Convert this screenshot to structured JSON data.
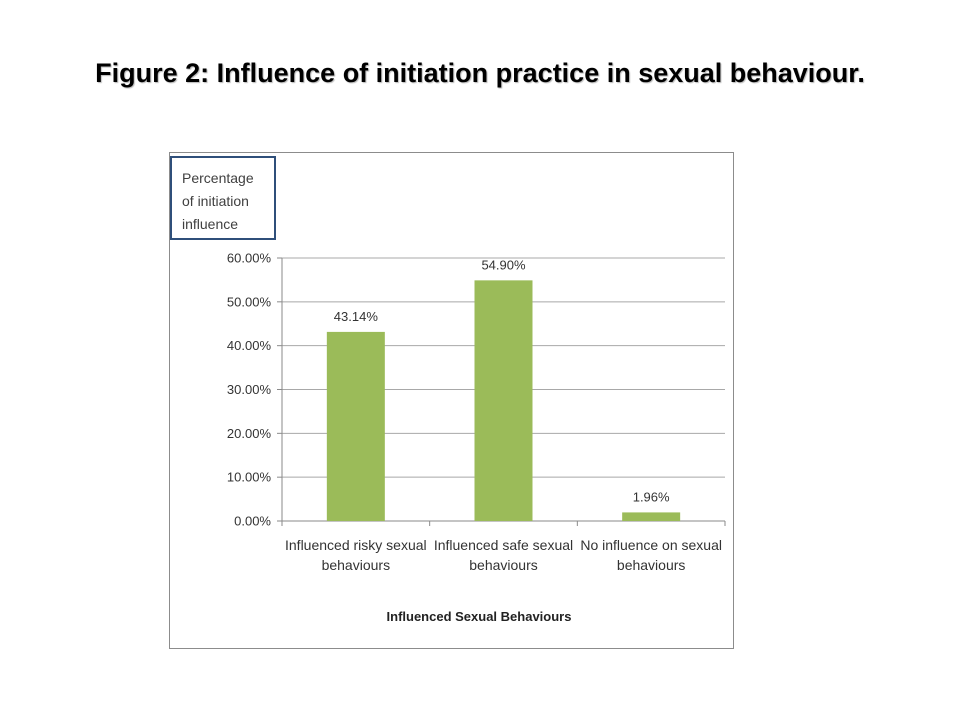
{
  "slide": {
    "title": "Figure 2: Influence of initiation practice in sexual behaviour."
  },
  "chart_data": {
    "type": "bar",
    "ylabel": "Percentage of initiation influence",
    "xlabel": "Influenced Sexual Behaviours",
    "categories": [
      [
        "Influenced risky sexual",
        "behaviours"
      ],
      [
        "Influenced safe sexual",
        "behaviours"
      ],
      [
        "No influence on sexual",
        "behaviours"
      ]
    ],
    "values": [
      43.14,
      54.9,
      1.96
    ],
    "data_labels": [
      "43.14%",
      "54.90%",
      "1.96%"
    ],
    "yticks": [
      0,
      10,
      20,
      30,
      40,
      50,
      60
    ],
    "ytick_labels": [
      "0.00%",
      "10.00%",
      "20.00%",
      "30.00%",
      "40.00%",
      "50.00%",
      "60.00%"
    ],
    "ylim": [
      0,
      60
    ],
    "grid": true,
    "legend": "none",
    "bar_color": "#9bbb59"
  }
}
